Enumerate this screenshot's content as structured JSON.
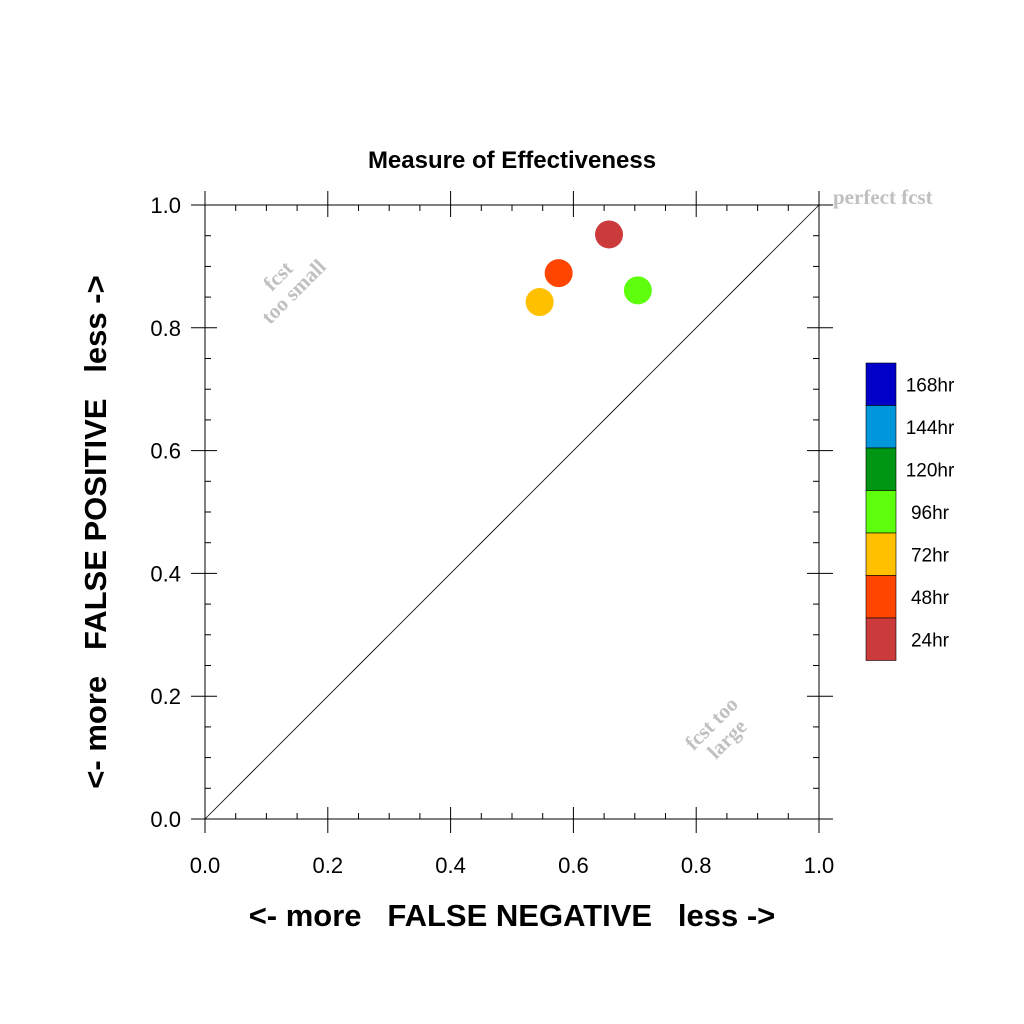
{
  "chart_data": {
    "type": "scatter",
    "title": "Measure of Effectiveness",
    "xlabel": "<- more   FALSE NEGATIVE   less ->",
    "ylabel": "<- more   FALSE POSITIVE   less ->",
    "xlim": [
      0.0,
      1.0
    ],
    "ylim": [
      0.0,
      1.0
    ],
    "x_ticks": [
      "0.0",
      "0.2",
      "0.4",
      "0.6",
      "0.8",
      "1.0"
    ],
    "y_ticks": [
      "0.0",
      "0.2",
      "0.4",
      "0.6",
      "0.8",
      "1.0"
    ],
    "grid": false,
    "diagonal_line": true,
    "annotations": {
      "perfect": "perfect fcst",
      "too_small_1": "fcst",
      "too_small_2": "too small",
      "too_large_1": "fcst too",
      "too_large_2": "large"
    },
    "points": [
      {
        "label": "24hr",
        "x": 0.658,
        "y": 0.952,
        "color": "#cc3b3b"
      },
      {
        "label": "48hr",
        "x": 0.576,
        "y": 0.889,
        "color": "#ff4500"
      },
      {
        "label": "72hr",
        "x": 0.545,
        "y": 0.842,
        "color": "#ffc000"
      },
      {
        "label": "96hr",
        "x": 0.705,
        "y": 0.861,
        "color": "#5eff0c"
      }
    ],
    "legend": {
      "position": "right",
      "items": [
        {
          "label": "168hr",
          "color": "#0000c8"
        },
        {
          "label": "144hr",
          "color": "#0096dc"
        },
        {
          "label": "120hr",
          "color": "#009614"
        },
        {
          "label": "96hr",
          "color": "#5eff0c"
        },
        {
          "label": "72hr",
          "color": "#ffc000"
        },
        {
          "label": "48hr",
          "color": "#ff4500"
        },
        {
          "label": "24hr",
          "color": "#cc3b3b"
        }
      ]
    }
  }
}
